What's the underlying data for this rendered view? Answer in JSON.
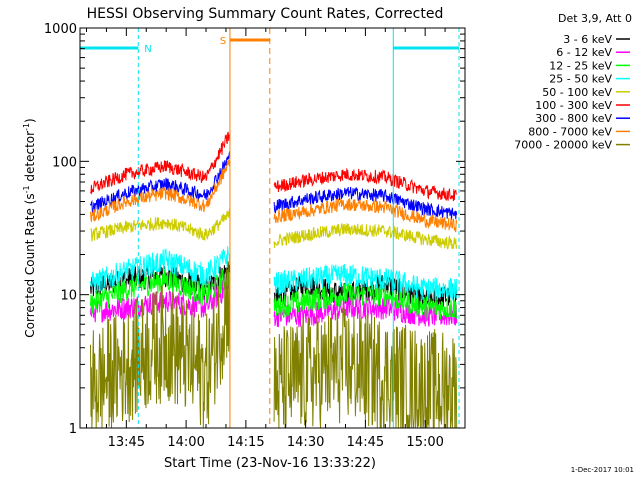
{
  "chart_data": {
    "type": "line",
    "title": "HESSI Observing Summary Count Rates, Corrected",
    "xlabel": "Start Time (23-Nov-16 13:33:22)",
    "ylabel": "Corrected Count Rate (s",
    "ylabel_sup1": "-1",
    "ylabel_mid": " detector",
    "ylabel_sup2": "-1",
    "ylabel_end": ")",
    "y_scale": "log",
    "ylim": [
      1,
      1000
    ],
    "xlim": [
      "13:33:22",
      "15:10:00"
    ],
    "x_tick_labels": [
      "13:45",
      "14:00",
      "14:15",
      "14:30",
      "14:45",
      "15:00"
    ],
    "y_tick_labels": [
      "1",
      "10",
      "100",
      "1000"
    ],
    "legend_title": "Det 3,9, Att 0",
    "legend_position": "top-right",
    "timestamp": "1-Dec-2017 10:01",
    "gaps": [
      {
        "start": "14:11:00",
        "end": "14:21:00",
        "label": "S",
        "color": "#ff7f00"
      }
    ],
    "night_markers": [
      {
        "start": "13:33:22",
        "end": "13:48:00",
        "label": "N",
        "color": "#00e5ee"
      },
      {
        "start": "14:52:00",
        "end": "15:08:30",
        "label": "",
        "color": "#00e5ee"
      }
    ],
    "series": [
      {
        "name": "3 - 6 keV",
        "color": "#000000",
        "x": [
          "13:36",
          "13:45",
          "13:55",
          "14:05",
          "14:11",
          "14:22",
          "14:30",
          "14:40",
          "14:50",
          "15:00",
          "15:08"
        ],
        "values": [
          11,
          13,
          14,
          11,
          16,
          9,
          12,
          10,
          12,
          9,
          10
        ]
      },
      {
        "name": "6 - 12 keV",
        "color": "#ff00ff",
        "x": [
          "13:36",
          "13:45",
          "13:55",
          "14:05",
          "14:11",
          "14:22",
          "14:30",
          "14:40",
          "14:50",
          "15:00",
          "15:08"
        ],
        "values": [
          7.5,
          8,
          9,
          8,
          12,
          7,
          7,
          8,
          8,
          7,
          7
        ]
      },
      {
        "name": "12 - 25 keV",
        "color": "#00ff00",
        "x": [
          "13:36",
          "13:45",
          "13:55",
          "14:05",
          "14:11",
          "14:22",
          "14:30",
          "14:40",
          "14:50",
          "15:00",
          "15:08"
        ],
        "values": [
          8.5,
          11,
          13,
          10,
          14,
          8,
          9,
          10,
          10,
          8,
          8
        ]
      },
      {
        "name": "25 - 50 keV",
        "color": "#00ffff",
        "x": [
          "13:36",
          "13:45",
          "13:55",
          "14:05",
          "14:11",
          "14:22",
          "14:30",
          "14:40",
          "14:50",
          "15:00",
          "15:08"
        ],
        "values": [
          12,
          15,
          18,
          14,
          20,
          12,
          13,
          14,
          13,
          11,
          11
        ]
      },
      {
        "name": "50 - 100 keV",
        "color": "#cccc00",
        "x": [
          "13:36",
          "13:45",
          "13:55",
          "14:05",
          "14:11",
          "14:22",
          "14:30",
          "14:40",
          "14:50",
          "15:00",
          "15:08"
        ],
        "values": [
          28,
          32,
          35,
          28,
          40,
          25,
          28,
          31,
          30,
          26,
          24
        ]
      },
      {
        "name": "100 - 300 keV",
        "color": "#ff0000",
        "x": [
          "13:36",
          "13:45",
          "13:55",
          "14:05",
          "14:11",
          "14:22",
          "14:30",
          "14:40",
          "14:50",
          "15:00",
          "15:08"
        ],
        "values": [
          62,
          80,
          92,
          75,
          160,
          64,
          72,
          80,
          76,
          60,
          55
        ]
      },
      {
        "name": "300 - 800 keV",
        "color": "#0000ff",
        "x": [
          "13:36",
          "13:45",
          "13:55",
          "14:05",
          "14:11",
          "14:22",
          "14:30",
          "14:40",
          "14:50",
          "15:00",
          "15:08"
        ],
        "values": [
          45,
          58,
          68,
          55,
          110,
          46,
          52,
          58,
          55,
          44,
          40
        ]
      },
      {
        "name": "800 - 7000 keV",
        "color": "#ff7f00",
        "x": [
          "13:36",
          "13:45",
          "13:55",
          "14:05",
          "14:11",
          "14:22",
          "14:30",
          "14:40",
          "14:50",
          "15:00",
          "15:08"
        ],
        "values": [
          38,
          50,
          58,
          46,
          100,
          38,
          42,
          48,
          45,
          36,
          33
        ]
      },
      {
        "name": "7000 - 20000 keV",
        "color": "#808000",
        "x": [
          "13:36",
          "13:45",
          "13:55",
          "14:05",
          "14:11",
          "14:22",
          "14:30",
          "14:40",
          "14:50",
          "15:00",
          "15:08"
        ],
        "values": [
          2,
          3,
          4.5,
          2.5,
          10,
          2,
          2.5,
          3,
          2.5,
          2,
          2
        ]
      }
    ]
  }
}
